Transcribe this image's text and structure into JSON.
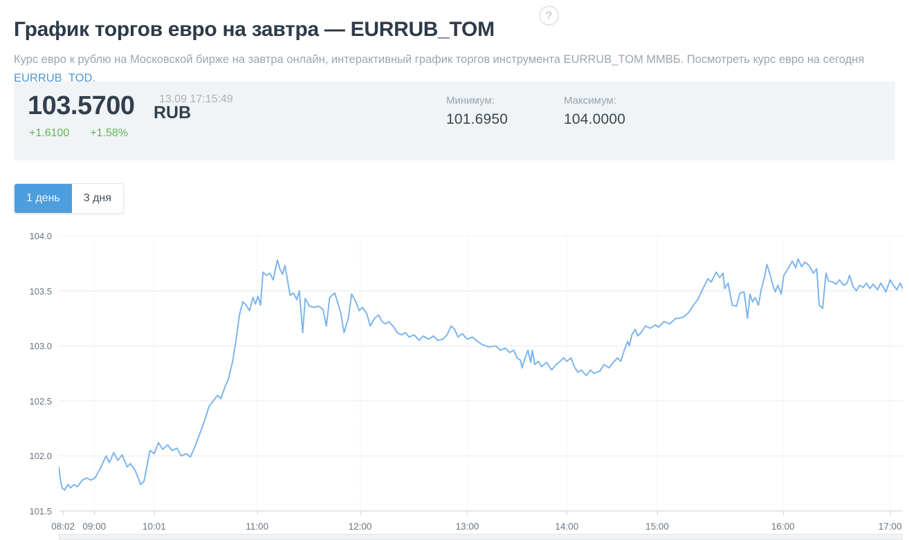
{
  "page": {
    "title": "График торгов евро на завтра — EURRUB_TOM",
    "help_icon": "?",
    "subtitle_text": "Курс евро к рублю на Московской бирже на завтра онлайн, интерактивный график торгов инструмента EURRUB_TOM ММВБ. Посмотреть курс евро на сегодня ",
    "subtitle_link": "EURRUB_TOD",
    "subtitle_suffix": "."
  },
  "quote": {
    "price": "103.5700",
    "currency": "RUB",
    "timestamp": "13.09 17:15:49",
    "change_abs": "+1.6100",
    "change_pct": "+1.58%",
    "min_label": "Минимум:",
    "min_value": "101.6950",
    "max_label": "Максимум:",
    "max_value": "104.0000"
  },
  "tabs": [
    {
      "label": "1 день",
      "active": true
    },
    {
      "label": "3 дня",
      "active": false
    }
  ],
  "colors": {
    "accent_blue": "#4d9edf",
    "line_blue": "#7cb5ec",
    "positive_green": "#62b356",
    "panel_bg": "#f1f4f6",
    "grid": "#e7e9eb",
    "axis": "#ccd1d5"
  },
  "chart_data": {
    "type": "line",
    "title": "",
    "series_name": "EURRUB_TOM",
    "xlabel": "",
    "ylabel": "",
    "ylim": [
      101.5,
      104.0
    ],
    "grid": true,
    "legend": false,
    "y_ticks": [
      "104.0",
      "103.5",
      "103.0",
      "102.5",
      "102.0",
      "101.5"
    ],
    "x_ticks": [
      {
        "label": "08:02",
        "t": 0.005
      },
      {
        "label": "09:00",
        "t": 0.042
      },
      {
        "label": "10:01",
        "t": 0.113
      },
      {
        "label": "11:00",
        "t": 0.235
      },
      {
        "label": "12:00",
        "t": 0.357
      },
      {
        "label": "13:00",
        "t": 0.484
      },
      {
        "label": "14:00",
        "t": 0.602
      },
      {
        "label": "15:00",
        "t": 0.709
      },
      {
        "label": "16:00",
        "t": 0.858
      },
      {
        "label": "17:00",
        "t": 0.985
      }
    ],
    "points": [
      [
        0.0,
        101.9
      ],
      [
        0.002,
        101.78
      ],
      [
        0.004,
        101.71
      ],
      [
        0.007,
        101.69
      ],
      [
        0.011,
        101.74
      ],
      [
        0.014,
        101.71
      ],
      [
        0.018,
        101.74
      ],
      [
        0.022,
        101.72
      ],
      [
        0.028,
        101.78
      ],
      [
        0.033,
        101.8
      ],
      [
        0.038,
        101.78
      ],
      [
        0.043,
        101.8
      ],
      [
        0.05,
        101.9
      ],
      [
        0.056,
        102.0
      ],
      [
        0.06,
        101.94
      ],
      [
        0.065,
        102.03
      ],
      [
        0.07,
        101.96
      ],
      [
        0.075,
        102.01
      ],
      [
        0.081,
        101.9
      ],
      [
        0.085,
        101.93
      ],
      [
        0.091,
        101.86
      ],
      [
        0.097,
        101.74
      ],
      [
        0.101,
        101.77
      ],
      [
        0.108,
        102.05
      ],
      [
        0.113,
        102.02
      ],
      [
        0.118,
        102.12
      ],
      [
        0.123,
        102.06
      ],
      [
        0.129,
        102.1
      ],
      [
        0.134,
        102.05
      ],
      [
        0.14,
        102.07
      ],
      [
        0.145,
        102.0
      ],
      [
        0.151,
        102.02
      ],
      [
        0.156,
        101.99
      ],
      [
        0.161,
        102.08
      ],
      [
        0.167,
        102.2
      ],
      [
        0.173,
        102.33
      ],
      [
        0.178,
        102.45
      ],
      [
        0.183,
        102.5
      ],
      [
        0.188,
        102.55
      ],
      [
        0.192,
        102.52
      ],
      [
        0.197,
        102.63
      ],
      [
        0.201,
        102.7
      ],
      [
        0.206,
        102.86
      ],
      [
        0.21,
        103.05
      ],
      [
        0.214,
        103.28
      ],
      [
        0.218,
        103.4
      ],
      [
        0.222,
        103.37
      ],
      [
        0.226,
        103.32
      ],
      [
        0.23,
        103.44
      ],
      [
        0.233,
        103.38
      ],
      [
        0.236,
        103.45
      ],
      [
        0.239,
        103.37
      ],
      [
        0.242,
        103.67
      ],
      [
        0.246,
        103.64
      ],
      [
        0.25,
        103.66
      ],
      [
        0.254,
        103.6
      ],
      [
        0.259,
        103.78
      ],
      [
        0.262,
        103.7
      ],
      [
        0.265,
        103.65
      ],
      [
        0.268,
        103.73
      ],
      [
        0.271,
        103.6
      ],
      [
        0.274,
        103.46
      ],
      [
        0.278,
        103.48
      ],
      [
        0.282,
        103.42
      ],
      [
        0.285,
        103.5
      ],
      [
        0.289,
        103.12
      ],
      [
        0.292,
        103.43
      ],
      [
        0.297,
        103.36
      ],
      [
        0.303,
        103.35
      ],
      [
        0.308,
        103.36
      ],
      [
        0.313,
        103.33
      ],
      [
        0.317,
        103.18
      ],
      [
        0.321,
        103.44
      ],
      [
        0.327,
        103.48
      ],
      [
        0.331,
        103.38
      ],
      [
        0.334,
        103.3
      ],
      [
        0.338,
        103.12
      ],
      [
        0.343,
        103.25
      ],
      [
        0.347,
        103.47
      ],
      [
        0.352,
        103.4
      ],
      [
        0.356,
        103.32
      ],
      [
        0.36,
        103.35
      ],
      [
        0.365,
        103.29
      ],
      [
        0.369,
        103.18
      ],
      [
        0.374,
        103.25
      ],
      [
        0.379,
        103.28
      ],
      [
        0.383,
        103.22
      ],
      [
        0.387,
        103.2
      ],
      [
        0.391,
        103.22
      ],
      [
        0.397,
        103.17
      ],
      [
        0.401,
        103.12
      ],
      [
        0.406,
        103.1
      ],
      [
        0.411,
        103.12
      ],
      [
        0.415,
        103.08
      ],
      [
        0.421,
        103.1
      ],
      [
        0.427,
        103.05
      ],
      [
        0.432,
        103.09
      ],
      [
        0.438,
        103.06
      ],
      [
        0.444,
        103.09
      ],
      [
        0.449,
        103.05
      ],
      [
        0.455,
        103.06
      ],
      [
        0.46,
        103.1
      ],
      [
        0.465,
        103.18
      ],
      [
        0.469,
        103.15
      ],
      [
        0.473,
        103.08
      ],
      [
        0.478,
        103.11
      ],
      [
        0.484,
        103.06
      ],
      [
        0.49,
        103.08
      ],
      [
        0.496,
        103.04
      ],
      [
        0.502,
        103.01
      ],
      [
        0.51,
        102.99
      ],
      [
        0.518,
        103.0
      ],
      [
        0.523,
        102.96
      ],
      [
        0.529,
        102.98
      ],
      [
        0.534,
        102.94
      ],
      [
        0.539,
        102.96
      ],
      [
        0.543,
        102.89
      ],
      [
        0.547,
        102.87
      ],
      [
        0.549,
        102.8
      ],
      [
        0.552,
        102.88
      ],
      [
        0.556,
        102.96
      ],
      [
        0.559,
        102.85
      ],
      [
        0.561,
        102.96
      ],
      [
        0.564,
        102.83
      ],
      [
        0.568,
        102.86
      ],
      [
        0.572,
        102.81
      ],
      [
        0.578,
        102.85
      ],
      [
        0.584,
        102.78
      ],
      [
        0.589,
        102.83
      ],
      [
        0.594,
        102.86
      ],
      [
        0.598,
        102.89
      ],
      [
        0.602,
        102.86
      ],
      [
        0.607,
        102.89
      ],
      [
        0.611,
        102.81
      ],
      [
        0.615,
        102.76
      ],
      [
        0.619,
        102.78
      ],
      [
        0.625,
        102.73
      ],
      [
        0.63,
        102.78
      ],
      [
        0.634,
        102.75
      ],
      [
        0.641,
        102.77
      ],
      [
        0.646,
        102.83
      ],
      [
        0.652,
        102.8
      ],
      [
        0.657,
        102.85
      ],
      [
        0.662,
        102.89
      ],
      [
        0.666,
        102.86
      ],
      [
        0.67,
        102.96
      ],
      [
        0.674,
        103.04
      ],
      [
        0.676,
        103.0
      ],
      [
        0.679,
        103.1
      ],
      [
        0.683,
        103.15
      ],
      [
        0.686,
        103.09
      ],
      [
        0.69,
        103.12
      ],
      [
        0.695,
        103.18
      ],
      [
        0.701,
        103.16
      ],
      [
        0.707,
        103.19
      ],
      [
        0.711,
        103.17
      ],
      [
        0.717,
        103.22
      ],
      [
        0.724,
        103.2
      ],
      [
        0.731,
        103.25
      ],
      [
        0.734,
        103.25
      ],
      [
        0.74,
        103.26
      ],
      [
        0.746,
        103.3
      ],
      [
        0.752,
        103.37
      ],
      [
        0.757,
        103.42
      ],
      [
        0.762,
        103.5
      ],
      [
        0.769,
        103.61
      ],
      [
        0.773,
        103.58
      ],
      [
        0.779,
        103.67
      ],
      [
        0.783,
        103.62
      ],
      [
        0.787,
        103.66
      ],
      [
        0.789,
        103.52
      ],
      [
        0.793,
        103.57
      ],
      [
        0.798,
        103.37
      ],
      [
        0.803,
        103.36
      ],
      [
        0.807,
        103.48
      ],
      [
        0.812,
        103.49
      ],
      [
        0.816,
        103.25
      ],
      [
        0.819,
        103.47
      ],
      [
        0.822,
        103.4
      ],
      [
        0.825,
        103.44
      ],
      [
        0.829,
        103.37
      ],
      [
        0.832,
        103.5
      ],
      [
        0.836,
        103.62
      ],
      [
        0.839,
        103.74
      ],
      [
        0.843,
        103.64
      ],
      [
        0.846,
        103.55
      ],
      [
        0.849,
        103.49
      ],
      [
        0.852,
        103.55
      ],
      [
        0.856,
        103.47
      ],
      [
        0.859,
        103.64
      ],
      [
        0.864,
        103.7
      ],
      [
        0.869,
        103.77
      ],
      [
        0.873,
        103.71
      ],
      [
        0.876,
        103.79
      ],
      [
        0.88,
        103.72
      ],
      [
        0.884,
        103.76
      ],
      [
        0.889,
        103.73
      ],
      [
        0.894,
        103.66
      ],
      [
        0.898,
        103.7
      ],
      [
        0.901,
        103.37
      ],
      [
        0.905,
        103.34
      ],
      [
        0.909,
        103.66
      ],
      [
        0.912,
        103.59
      ],
      [
        0.917,
        103.58
      ],
      [
        0.921,
        103.56
      ],
      [
        0.925,
        103.6
      ],
      [
        0.93,
        103.55
      ],
      [
        0.934,
        103.57
      ],
      [
        0.937,
        103.64
      ],
      [
        0.941,
        103.54
      ],
      [
        0.945,
        103.5
      ],
      [
        0.949,
        103.55
      ],
      [
        0.953,
        103.53
      ],
      [
        0.957,
        103.57
      ],
      [
        0.961,
        103.52
      ],
      [
        0.965,
        103.56
      ],
      [
        0.97,
        103.51
      ],
      [
        0.974,
        103.57
      ],
      [
        0.98,
        103.49
      ],
      [
        0.985,
        103.6
      ],
      [
        0.989,
        103.55
      ],
      [
        0.993,
        103.51
      ],
      [
        0.997,
        103.57
      ],
      [
        1.0,
        103.52
      ]
    ]
  }
}
